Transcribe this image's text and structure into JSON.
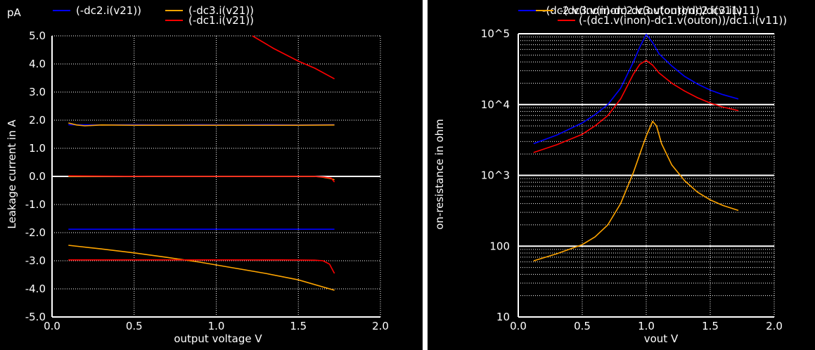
{
  "chart_data": [
    {
      "type": "line",
      "unit_label": "pA",
      "xlabel": "output voltage  V",
      "ylabel": "Leakage current in A",
      "xlim": [
        0.0,
        2.0
      ],
      "ylim": [
        -5.0,
        5.0
      ],
      "x_ticks": [
        "0.0",
        "0.5",
        "1.0",
        "1.5",
        "2.0"
      ],
      "y_ticks": [
        "5.0",
        "4.0",
        "3.0",
        "2.0",
        "1.0",
        "0.0",
        "-1.0",
        "-2.0",
        "-3.0",
        "-4.0",
        "-5.0"
      ],
      "grid": true,
      "legend_position": "top",
      "legend": [
        {
          "name": "(-dc2.i(v21))",
          "color": "#0000ff"
        },
        {
          "name": "(-dc3.i(v21))",
          "color": "#ffa500"
        },
        {
          "name": "(-dc1.i(v21))",
          "color": "#ff0000"
        }
      ],
      "series": [
        {
          "legend_index": 0,
          "color": "#0000ff",
          "points": [
            [
              0.1,
              1.84
            ],
            [
              0.3,
              1.83
            ],
            [
              0.5,
              1.84
            ],
            [
              0.7,
              1.83
            ],
            [
              0.9,
              1.84
            ],
            [
              1.1,
              1.83
            ],
            [
              1.3,
              1.84
            ],
            [
              1.5,
              1.83
            ],
            [
              1.72,
              1.84
            ]
          ]
        },
        {
          "legend_index": 0,
          "color": "#0000ff",
          "points": [
            [
              0.1,
              -1.88
            ],
            [
              0.4,
              -1.88
            ],
            [
              0.7,
              -1.88
            ],
            [
              1.0,
              -1.88
            ],
            [
              1.3,
              -1.88
            ],
            [
              1.72,
              -1.88
            ]
          ]
        },
        {
          "legend_index": 1,
          "color": "#ffa500",
          "points": [
            [
              0.1,
              1.9
            ],
            [
              0.15,
              1.83
            ],
            [
              0.2,
              1.8
            ],
            [
              0.3,
              1.83
            ],
            [
              0.5,
              1.82
            ],
            [
              0.7,
              1.82
            ],
            [
              0.9,
              1.82
            ],
            [
              1.1,
              1.82
            ],
            [
              1.3,
              1.82
            ],
            [
              1.5,
              1.82
            ],
            [
              1.72,
              1.83
            ]
          ]
        },
        {
          "legend_index": 1,
          "color": "#ffa500",
          "points": [
            [
              0.1,
              0.0
            ],
            [
              0.6,
              0.0
            ],
            [
              1.2,
              0.0
            ],
            [
              1.6,
              0.0
            ],
            [
              1.65,
              -0.03
            ],
            [
              1.7,
              -0.08
            ],
            [
              1.72,
              -0.12
            ]
          ]
        },
        {
          "legend_index": 1,
          "color": "#ffa500",
          "points": [
            [
              0.1,
              -2.45
            ],
            [
              0.3,
              -2.58
            ],
            [
              0.5,
              -2.72
            ],
            [
              0.7,
              -2.88
            ],
            [
              0.9,
              -3.05
            ],
            [
              1.1,
              -3.25
            ],
            [
              1.3,
              -3.45
            ],
            [
              1.5,
              -3.68
            ],
            [
              1.72,
              -4.05
            ]
          ]
        },
        {
          "legend_index": 2,
          "color": "#ff0000",
          "points": [
            [
              0.1,
              0.02
            ],
            [
              0.6,
              0.0
            ],
            [
              1.2,
              0.0
            ],
            [
              1.6,
              0.0
            ],
            [
              1.65,
              -0.02
            ],
            [
              1.7,
              -0.06
            ],
            [
              1.72,
              -0.2
            ]
          ]
        },
        {
          "legend_index": 2,
          "color": "#ff0000",
          "points": [
            [
              0.1,
              -2.97
            ],
            [
              0.5,
              -2.97
            ],
            [
              1.0,
              -2.97
            ],
            [
              1.4,
              -2.97
            ],
            [
              1.6,
              -2.98
            ],
            [
              1.65,
              -3.0
            ],
            [
              1.69,
              -3.12
            ],
            [
              1.72,
              -3.45
            ]
          ]
        },
        {
          "legend_index": 2,
          "color": "#ff0000",
          "points": [
            [
              1.22,
              5.0
            ],
            [
              1.35,
              4.55
            ],
            [
              1.5,
              4.1
            ],
            [
              1.6,
              3.85
            ],
            [
              1.72,
              3.47
            ]
          ]
        }
      ]
    },
    {
      "type": "line",
      "xlabel": "vout        V",
      "ylabel": "on-resistance in ohm",
      "xlim": [
        0.0,
        2.0
      ],
      "ylim": [
        10,
        100000
      ],
      "y_scale": "log",
      "x_ticks": [
        "0.0",
        "0.5",
        "1.0",
        "1.5",
        "2.0"
      ],
      "y_ticks": [
        {
          "label": "10^5",
          "value": 100000
        },
        {
          "label": "10^4",
          "value": 10000
        },
        {
          "label": "10^3",
          "value": 1000
        },
        {
          "label": "100",
          "value": 100
        },
        {
          "label": "10",
          "value": 10
        }
      ],
      "grid": true,
      "legend_position": "top",
      "legend": [
        {
          "name": "-(dc2.v(inon)-dc2.v(outon))/dc2.i(v11)",
          "color": "#0000ff"
        },
        {
          "name": "-(dc3.v(inon)-dc3.v(outon))/dc3.i(v11)",
          "color": "#ffa500"
        },
        {
          "name": "(-(dc1.v(inon)-dc1.v(outon))/dc1.i(v11))",
          "color": "#ff0000"
        }
      ],
      "series": [
        {
          "legend_index": 0,
          "color": "#0000ff",
          "points": [
            [
              0.12,
              2800
            ],
            [
              0.3,
              3700
            ],
            [
              0.5,
              5500
            ],
            [
              0.6,
              7200
            ],
            [
              0.7,
              10000
            ],
            [
              0.8,
              17000
            ],
            [
              0.9,
              40000
            ],
            [
              0.95,
              65000
            ],
            [
              1.0,
              98000
            ],
            [
              1.05,
              75000
            ],
            [
              1.1,
              52000
            ],
            [
              1.2,
              35000
            ],
            [
              1.3,
              25000
            ],
            [
              1.4,
              19500
            ],
            [
              1.5,
              16000
            ],
            [
              1.6,
              13800
            ],
            [
              1.72,
              12000
            ]
          ]
        },
        {
          "legend_index": 1,
          "color": "#ffa500",
          "points": [
            [
              0.12,
              62
            ],
            [
              0.3,
              78
            ],
            [
              0.5,
              105
            ],
            [
              0.6,
              135
            ],
            [
              0.7,
              200
            ],
            [
              0.8,
              400
            ],
            [
              0.9,
              1100
            ],
            [
              0.95,
              2000
            ],
            [
              1.0,
              3600
            ],
            [
              1.05,
              5800
            ],
            [
              1.08,
              5000
            ],
            [
              1.12,
              2800
            ],
            [
              1.2,
              1400
            ],
            [
              1.3,
              840
            ],
            [
              1.4,
              580
            ],
            [
              1.5,
              450
            ],
            [
              1.6,
              375
            ],
            [
              1.72,
              320
            ]
          ]
        },
        {
          "legend_index": 2,
          "color": "#ff0000",
          "points": [
            [
              0.12,
              2100
            ],
            [
              0.3,
              2700
            ],
            [
              0.5,
              3800
            ],
            [
              0.6,
              5000
            ],
            [
              0.7,
              7000
            ],
            [
              0.8,
              12000
            ],
            [
              0.9,
              27000
            ],
            [
              0.95,
              37000
            ],
            [
              1.0,
              42000
            ],
            [
              1.05,
              36000
            ],
            [
              1.1,
              28000
            ],
            [
              1.2,
              20000
            ],
            [
              1.3,
              15500
            ],
            [
              1.4,
              12500
            ],
            [
              1.5,
              10500
            ],
            [
              1.6,
              9200
            ],
            [
              1.72,
              8200
            ]
          ]
        }
      ]
    }
  ]
}
